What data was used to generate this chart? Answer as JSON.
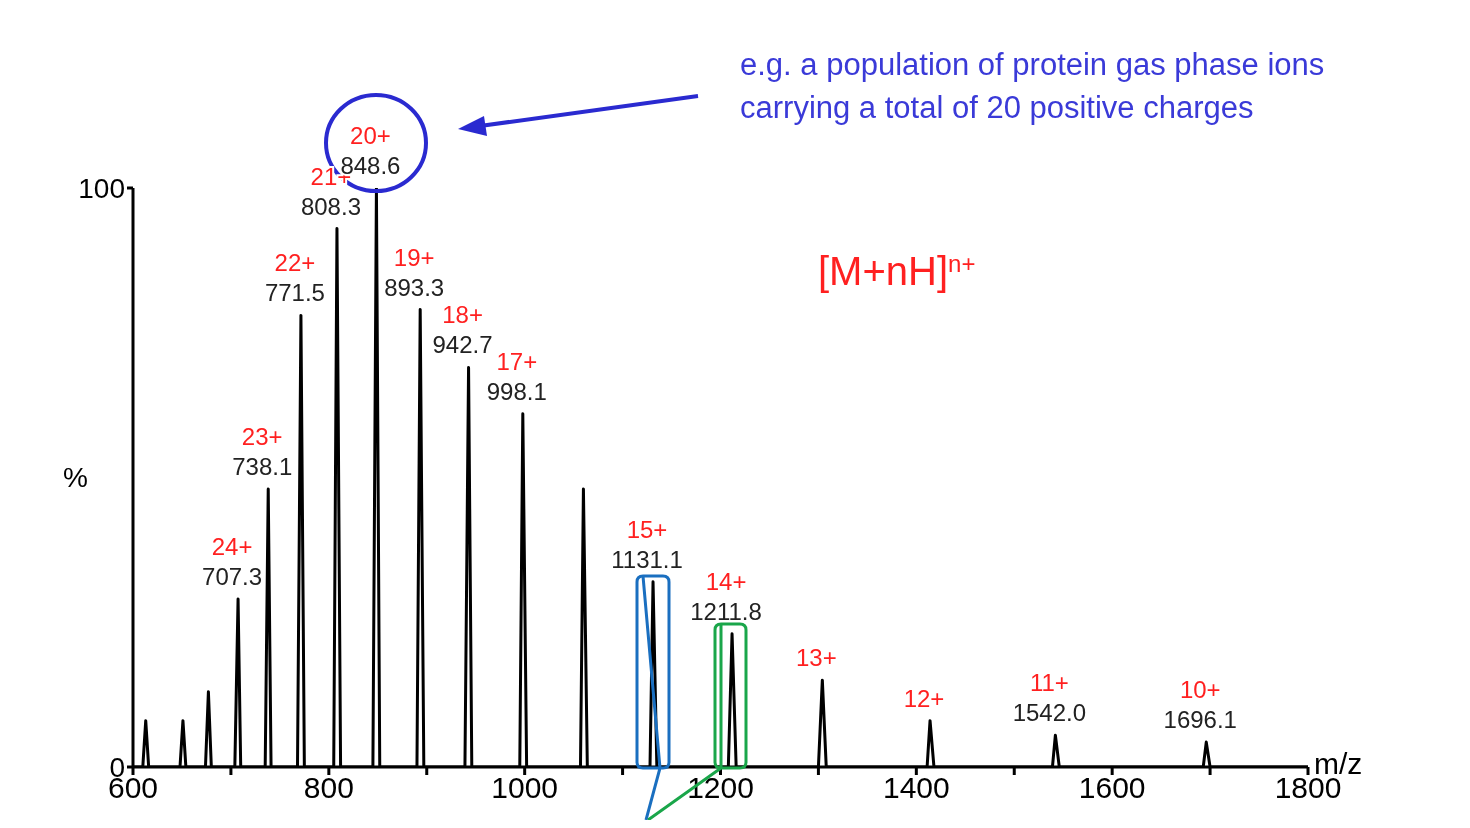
{
  "chart_data": {
    "type": "line",
    "xlabel": "m/z",
    "ylabel": "%",
    "x": [
      600,
      610,
      613,
      616,
      648,
      651,
      654,
      674,
      677,
      680,
      704,
      707.3,
      710,
      735,
      738.1,
      741,
      768,
      771.5,
      775,
      805,
      808.3,
      812,
      845,
      848.6,
      852,
      890,
      893.3,
      897,
      939,
      942.7,
      946,
      995,
      998.1,
      1002,
      1057,
      1060,
      1064,
      1128,
      1131.1,
      1135,
      1208,
      1211.8,
      1216,
      1300,
      1304,
      1308,
      1411,
      1414,
      1418,
      1539,
      1542.0,
      1546,
      1693,
      1696.1,
      1700,
      1800
    ],
    "values": [
      0,
      0,
      8,
      0,
      0,
      8,
      0,
      0,
      13,
      0,
      0,
      29,
      0,
      0,
      48,
      0,
      0,
      78,
      0,
      0,
      93,
      0,
      0,
      100,
      0,
      0,
      79,
      0,
      0,
      69,
      0,
      0,
      61,
      0,
      0,
      48,
      0,
      0,
      32,
      0,
      0,
      23,
      0,
      0,
      15,
      0,
      0,
      8,
      0,
      0,
      5.5,
      0,
      0,
      4.3,
      0,
      0
    ],
    "color": "#000000",
    "marker": "none",
    "line_style": "solid",
    "xlim": [
      600,
      1800
    ],
    "ylim": [
      0,
      100
    ],
    "xticks": [
      600,
      {
        "value": 700,
        "label": null
      },
      800,
      {
        "value": 900,
        "label": null
      },
      1000,
      {
        "value": 1100,
        "label": null
      },
      1200,
      {
        "value": 1300,
        "label": null
      },
      1400,
      {
        "value": 1500,
        "label": null
      },
      1600,
      {
        "value": 1700,
        "label": null
      },
      1800
    ],
    "yticks": [
      0,
      100
    ],
    "annotations": [
      "e.g. a population of protein gas phase ions\ncarrying a total of 20 positive charges",
      "[M+nH]$^{n+}$",
      {
        "text": "24+",
        "x": 707.3,
        "y": 29
      },
      {
        "text": "707.3",
        "x": 707.3,
        "y": 29
      },
      {
        "text": "23+",
        "x": 738.1,
        "y": 48
      },
      {
        "text": "738.1",
        "x": 738.1,
        "y": 48
      },
      {
        "text": "22+",
        "x": 771.5,
        "y": 78
      },
      {
        "text": "771.5",
        "x": 771.5,
        "y": 78
      },
      {
        "text": "21+",
        "x": 808.3,
        "y": 93
      },
      {
        "text": "808.3",
        "x": 808.3,
        "y": 93
      },
      {
        "text": "20+",
        "x": 848.6,
        "y": 100
      },
      {
        "text": "848.6",
        "x": 848.6,
        "y": 100
      },
      {
        "text": "19+",
        "x": 893.3,
        "y": 79
      },
      {
        "text": "893.3",
        "x": 893.3,
        "y": 79
      },
      {
        "text": "18+",
        "x": 942.7,
        "y": 69
      },
      {
        "text": "942.7",
        "x": 942.7,
        "y": 69
      },
      {
        "text": "17+",
        "x": 998.1,
        "y": 61
      },
      {
        "text": "998.1",
        "x": 998.1,
        "y": 61
      },
      {
        "text": "15+",
        "x": 1131.1,
        "y": 32
      },
      {
        "text": "1131.1",
        "x": 1131.1,
        "y": 32
      },
      {
        "text": "14+",
        "x": 1211.8,
        "y": 23
      },
      {
        "text": "1211.8",
        "x": 1211.8,
        "y": 23
      },
      {
        "text": "13+",
        "x": 1304,
        "y": 15
      },
      {
        "text": "12+",
        "x": 1414,
        "y": 8
      },
      {
        "text": "11+",
        "x": 1542.0,
        "y": 5.5
      },
      {
        "text": "1542.0",
        "x": 1542.0,
        "y": 5.5
      },
      {
        "text": "10+",
        "x": 1696.1,
        "y": 4.3
      },
      {
        "text": "1696.1",
        "x": 1696.1,
        "y": 4.3
      }
    ]
  }
}
